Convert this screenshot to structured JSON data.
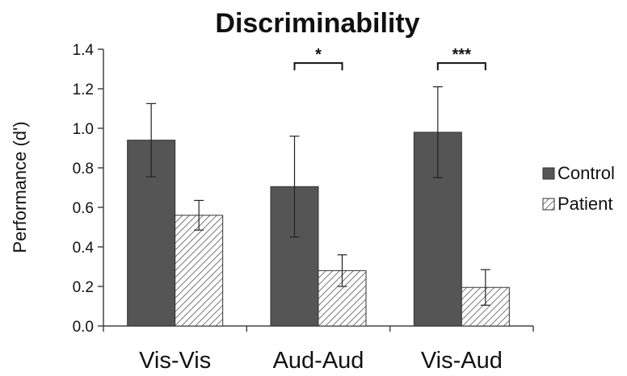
{
  "chart_data": {
    "type": "bar",
    "title": "Discriminability",
    "ylabel": "Performance (d')",
    "xlabel": "",
    "ylim": [
      0,
      1.4
    ],
    "yticks": [
      "0.0",
      "0.2",
      "0.4",
      "0.6",
      "0.8",
      "1.0",
      "1.2",
      "1.4"
    ],
    "categories": [
      "Vis-Vis",
      "Aud-Aud",
      "Vis-Aud"
    ],
    "series": [
      {
        "name": "Control",
        "values": [
          0.94,
          0.705,
          0.98
        ],
        "errors": [
          0.185,
          0.255,
          0.23
        ],
        "color": "#555555",
        "pattern": "solid"
      },
      {
        "name": "Patient",
        "values": [
          0.56,
          0.28,
          0.195
        ],
        "errors": [
          0.075,
          0.08,
          0.09
        ],
        "color": "#ffffff",
        "pattern": "hatched"
      }
    ],
    "significance": [
      {
        "category": "Aud-Aud",
        "label": "*",
        "y": 1.33
      },
      {
        "category": "Vis-Aud",
        "label": "***",
        "y": 1.33
      }
    ],
    "legend_position": "right",
    "grid": false
  }
}
